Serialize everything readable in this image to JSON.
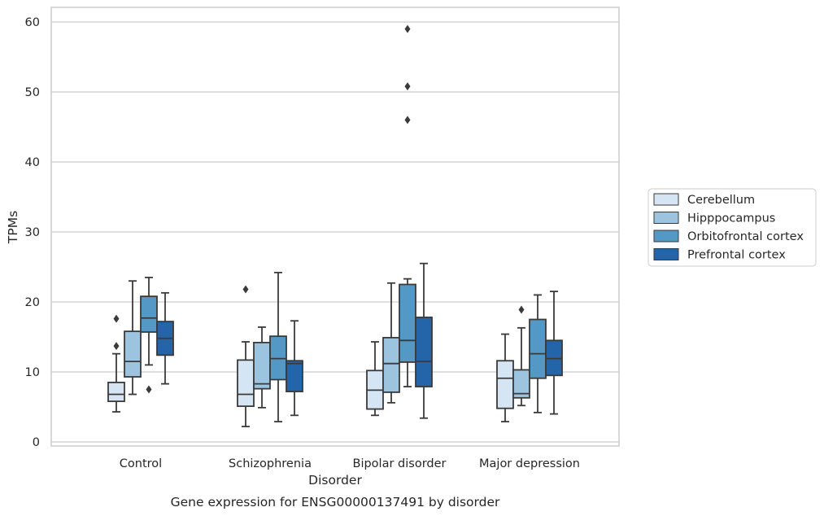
{
  "chart_data": {
    "type": "box",
    "xlabel": "Disorder",
    "ylabel": "TPMs",
    "caption": "Gene expression for ENSG00000137491 by disorder",
    "ylim": [
      -0.5,
      62
    ],
    "yticks": [
      0,
      10,
      20,
      30,
      40,
      50,
      60
    ],
    "grid": "horizontal",
    "legend_position": "right",
    "categories": [
      "Control",
      "Schizophrenia",
      "Bipolar disorder",
      "Major depression"
    ],
    "series": [
      {
        "name": "Cerebellum",
        "color": "#d6e5f3",
        "boxes": [
          {
            "whislo": 4.3,
            "q1": 5.8,
            "med": 6.8,
            "q3": 8.5,
            "whishi": 12.6,
            "fliers": [
              13.7,
              17.6
            ]
          },
          {
            "whislo": 2.2,
            "q1": 5.1,
            "med": 6.8,
            "q3": 11.7,
            "whishi": 14.3,
            "fliers": [
              21.8
            ]
          },
          {
            "whislo": 3.8,
            "q1": 4.7,
            "med": 7.4,
            "q3": 10.2,
            "whishi": 14.3,
            "fliers": []
          },
          {
            "whislo": 2.9,
            "q1": 4.8,
            "med": 9.1,
            "q3": 11.6,
            "whishi": 15.4,
            "fliers": []
          }
        ]
      },
      {
        "name": "Hipppocampus",
        "color": "#9dc4df",
        "boxes": [
          {
            "whislo": 6.8,
            "q1": 9.3,
            "med": 11.5,
            "q3": 15.8,
            "whishi": 23.0,
            "fliers": []
          },
          {
            "whislo": 4.9,
            "q1": 7.6,
            "med": 8.3,
            "q3": 14.2,
            "whishi": 16.4,
            "fliers": []
          },
          {
            "whislo": 5.6,
            "q1": 7.1,
            "med": 11.2,
            "q3": 14.9,
            "whishi": 22.7,
            "fliers": []
          },
          {
            "whislo": 5.2,
            "q1": 6.3,
            "med": 6.9,
            "q3": 10.3,
            "whishi": 16.3,
            "fliers": [
              18.9
            ]
          }
        ]
      },
      {
        "name": "Orbitofrontal cortex",
        "color": "#5499c6",
        "boxes": [
          {
            "whislo": 11.0,
            "q1": 15.7,
            "med": 17.7,
            "q3": 20.8,
            "whishi": 23.5,
            "fliers": [
              7.5
            ]
          },
          {
            "whislo": 2.9,
            "q1": 8.9,
            "med": 11.9,
            "q3": 15.1,
            "whishi": 24.2,
            "fliers": []
          },
          {
            "whislo": 7.9,
            "q1": 11.4,
            "med": 14.5,
            "q3": 22.5,
            "whishi": 23.3,
            "fliers": [
              46.0,
              50.8,
              59.0
            ]
          },
          {
            "whislo": 4.2,
            "q1": 9.1,
            "med": 12.6,
            "q3": 17.5,
            "whishi": 21.0,
            "fliers": []
          }
        ]
      },
      {
        "name": "Prefrontal cortex",
        "color": "#2464a8",
        "boxes": [
          {
            "whislo": 8.3,
            "q1": 12.4,
            "med": 14.8,
            "q3": 17.2,
            "whishi": 21.3,
            "fliers": []
          },
          {
            "whislo": 3.8,
            "q1": 7.2,
            "med": 11.2,
            "q3": 11.6,
            "whishi": 17.3,
            "fliers": []
          },
          {
            "whislo": 3.4,
            "q1": 7.9,
            "med": 11.5,
            "q3": 17.8,
            "whishi": 25.5,
            "fliers": []
          },
          {
            "whislo": 4.0,
            "q1": 9.5,
            "med": 11.9,
            "q3": 14.5,
            "whishi": 21.5,
            "fliers": []
          }
        ]
      }
    ]
  }
}
